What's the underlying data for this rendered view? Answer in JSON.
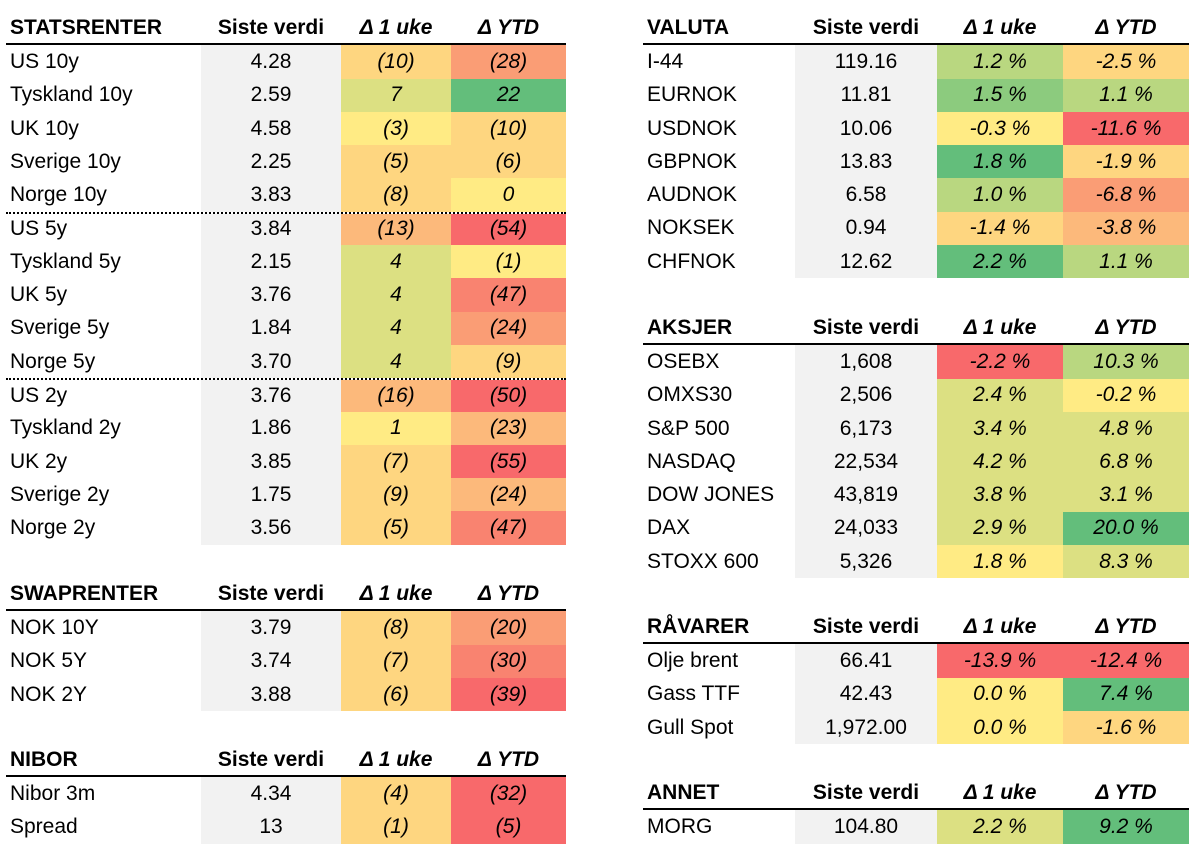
{
  "colors": {
    "dark_green": "#63be7b",
    "green": "#8ccb7e",
    "light_green": "#b9d780",
    "yellow_green": "#dce082",
    "yellow": "#ffeb84",
    "light_orange": "#fed680",
    "orange": "#fcb97b",
    "dark_orange": "#fa9d75",
    "red_orange": "#f98370",
    "red": "#f8696b",
    "value_bg": "#f2f2f2"
  },
  "tables": [
    {
      "id": "statsrenter",
      "title": "STATSRENTER",
      "col_value": "Siste verdi",
      "col_week": "Δ 1 uke",
      "col_ytd": "Δ YTD",
      "rows": [
        {
          "name": "US 10y",
          "value": "4.28",
          "week": "(10)",
          "ytd": "(28)",
          "wc": "light_orange",
          "yc": "dark_orange"
        },
        {
          "name": "Tyskland 10y",
          "value": "2.59",
          "week": "7",
          "ytd": "22",
          "wc": "yellow_green",
          "yc": "dark_green"
        },
        {
          "name": "UK 10y",
          "value": "4.58",
          "week": "(3)",
          "ytd": "(10)",
          "wc": "yellow",
          "yc": "light_orange"
        },
        {
          "name": "Sverige 10y",
          "value": "2.25",
          "week": "(5)",
          "ytd": "(6)",
          "wc": "light_orange",
          "yc": "light_orange"
        },
        {
          "name": "Norge 10y",
          "value": "3.83",
          "week": "(8)",
          "ytd": "0",
          "wc": "light_orange",
          "yc": "yellow"
        },
        {
          "name": "US 5y",
          "value": "3.84",
          "week": "(13)",
          "ytd": "(54)",
          "wc": "orange",
          "yc": "red",
          "sep": true
        },
        {
          "name": "Tyskland 5y",
          "value": "2.15",
          "week": "4",
          "ytd": "(1)",
          "wc": "yellow_green",
          "yc": "yellow"
        },
        {
          "name": "UK 5y",
          "value": "3.76",
          "week": "4",
          "ytd": "(47)",
          "wc": "yellow_green",
          "yc": "red_orange"
        },
        {
          "name": "Sverige 5y",
          "value": "1.84",
          "week": "4",
          "ytd": "(24)",
          "wc": "yellow_green",
          "yc": "dark_orange"
        },
        {
          "name": "Norge 5y",
          "value": "3.70",
          "week": "4",
          "ytd": "(9)",
          "wc": "yellow_green",
          "yc": "light_orange"
        },
        {
          "name": "US 2y",
          "value": "3.76",
          "week": "(16)",
          "ytd": "(50)",
          "wc": "orange",
          "yc": "red",
          "sep": true
        },
        {
          "name": "Tyskland 2y",
          "value": "1.86",
          "week": "1",
          "ytd": "(23)",
          "wc": "yellow",
          "yc": "orange"
        },
        {
          "name": "UK 2y",
          "value": "3.85",
          "week": "(7)",
          "ytd": "(55)",
          "wc": "light_orange",
          "yc": "red"
        },
        {
          "name": "Sverige 2y",
          "value": "1.75",
          "week": "(9)",
          "ytd": "(24)",
          "wc": "light_orange",
          "yc": "orange"
        },
        {
          "name": "Norge 2y",
          "value": "3.56",
          "week": "(5)",
          "ytd": "(47)",
          "wc": "light_orange",
          "yc": "red_orange"
        }
      ]
    },
    {
      "id": "swaprenter",
      "title": "SWAPRENTER",
      "col_value": "Siste verdi",
      "col_week": "Δ 1 uke",
      "col_ytd": "Δ YTD",
      "rows": [
        {
          "name": "NOK 10Y",
          "value": "3.79",
          "week": "(8)",
          "ytd": "(20)",
          "wc": "light_orange",
          "yc": "dark_orange"
        },
        {
          "name": "NOK 5Y",
          "value": "3.74",
          "week": "(7)",
          "ytd": "(30)",
          "wc": "light_orange",
          "yc": "red_orange"
        },
        {
          "name": "NOK 2Y",
          "value": "3.88",
          "week": "(6)",
          "ytd": "(39)",
          "wc": "light_orange",
          "yc": "red"
        }
      ]
    },
    {
      "id": "nibor",
      "title": "NIBOR",
      "col_value": "Siste verdi",
      "col_week": "Δ 1 uke",
      "col_ytd": "Δ YTD",
      "rows": [
        {
          "name": "Nibor 3m",
          "value": "4.34",
          "week": "(4)",
          "ytd": "(32)",
          "wc": "light_orange",
          "yc": "red"
        },
        {
          "name": "Spread",
          "value": "13",
          "week": "(1)",
          "ytd": "(5)",
          "wc": "light_orange",
          "yc": "red"
        }
      ]
    },
    {
      "id": "valuta",
      "title": "VALUTA",
      "col_value": "Siste verdi",
      "col_week": "Δ 1 uke",
      "col_ytd": "Δ YTD",
      "rows": [
        {
          "name": "I-44",
          "value": "119.16",
          "week": "1.2 %",
          "ytd": "-2.5 %",
          "wc": "light_green",
          "yc": "light_orange"
        },
        {
          "name": "EURNOK",
          "value": "11.81",
          "week": "1.5 %",
          "ytd": "1.1 %",
          "wc": "green",
          "yc": "light_green"
        },
        {
          "name": "USDNOK",
          "value": "10.06",
          "week": "-0.3 %",
          "ytd": "-11.6 %",
          "wc": "yellow",
          "yc": "red"
        },
        {
          "name": "GBPNOK",
          "value": "13.83",
          "week": "1.8 %",
          "ytd": "-1.9 %",
          "wc": "dark_green",
          "yc": "light_orange"
        },
        {
          "name": "AUDNOK",
          "value": "6.58",
          "week": "1.0 %",
          "ytd": "-6.8 %",
          "wc": "light_green",
          "yc": "dark_orange"
        },
        {
          "name": "NOKSEK",
          "value": "0.94",
          "week": "-1.4 %",
          "ytd": "-3.8 %",
          "wc": "light_orange",
          "yc": "orange"
        },
        {
          "name": "CHFNOK",
          "value": "12.62",
          "week": "2.2 %",
          "ytd": "1.1 %",
          "wc": "dark_green",
          "yc": "light_green"
        }
      ]
    },
    {
      "id": "aksjer",
      "title": "AKSJER",
      "col_value": "Siste verdi",
      "col_week": "Δ 1 uke",
      "col_ytd": "Δ YTD",
      "rows": [
        {
          "name": "OSEBX",
          "value": "1,608",
          "week": "-2.2 %",
          "ytd": "10.3 %",
          "wc": "red",
          "yc": "light_green"
        },
        {
          "name": "OMXS30",
          "value": "2,506",
          "week": "2.4 %",
          "ytd": "-0.2 %",
          "wc": "yellow_green",
          "yc": "yellow"
        },
        {
          "name": "S&P 500",
          "value": "6,173",
          "week": "3.4 %",
          "ytd": "4.8 %",
          "wc": "yellow_green",
          "yc": "yellow_green"
        },
        {
          "name": "NASDAQ",
          "value": "22,534",
          "week": "4.2 %",
          "ytd": "6.8 %",
          "wc": "yellow_green",
          "yc": "yellow_green"
        },
        {
          "name": "DOW JONES",
          "value": "43,819",
          "week": "3.8 %",
          "ytd": "3.1 %",
          "wc": "yellow_green",
          "yc": "yellow_green"
        },
        {
          "name": "DAX",
          "value": "24,033",
          "week": "2.9 %",
          "ytd": "20.0 %",
          "wc": "yellow_green",
          "yc": "dark_green"
        },
        {
          "name": "STOXX 600",
          "value": "5,326",
          "week": "1.8 %",
          "ytd": "8.3 %",
          "wc": "yellow",
          "yc": "yellow_green"
        }
      ]
    },
    {
      "id": "ravarer",
      "title": "RÅVARER",
      "col_value": "Siste verdi",
      "col_week": "Δ 1 uke",
      "col_ytd": "Δ YTD",
      "rows": [
        {
          "name": "Olje brent",
          "value": "66.41",
          "week": "-13.9 %",
          "ytd": "-12.4 %",
          "wc": "red",
          "yc": "red"
        },
        {
          "name": "Gass TTF",
          "value": "42.43",
          "week": "0.0 %",
          "ytd": "7.4 %",
          "wc": "yellow",
          "yc": "dark_green"
        },
        {
          "name": "Gull Spot",
          "value": "1,972.00",
          "week": "0.0 %",
          "ytd": "-1.6 %",
          "wc": "yellow",
          "yc": "light_orange"
        }
      ]
    },
    {
      "id": "annet",
      "title": "ANNET",
      "col_value": "Siste verdi",
      "col_week": "Δ 1 uke",
      "col_ytd": "Δ YTD",
      "rows": [
        {
          "name": "MORG",
          "value": "104.80",
          "week": "2.2 %",
          "ytd": "9.2 %",
          "wc": "yellow_green",
          "yc": "dark_green"
        }
      ]
    }
  ]
}
